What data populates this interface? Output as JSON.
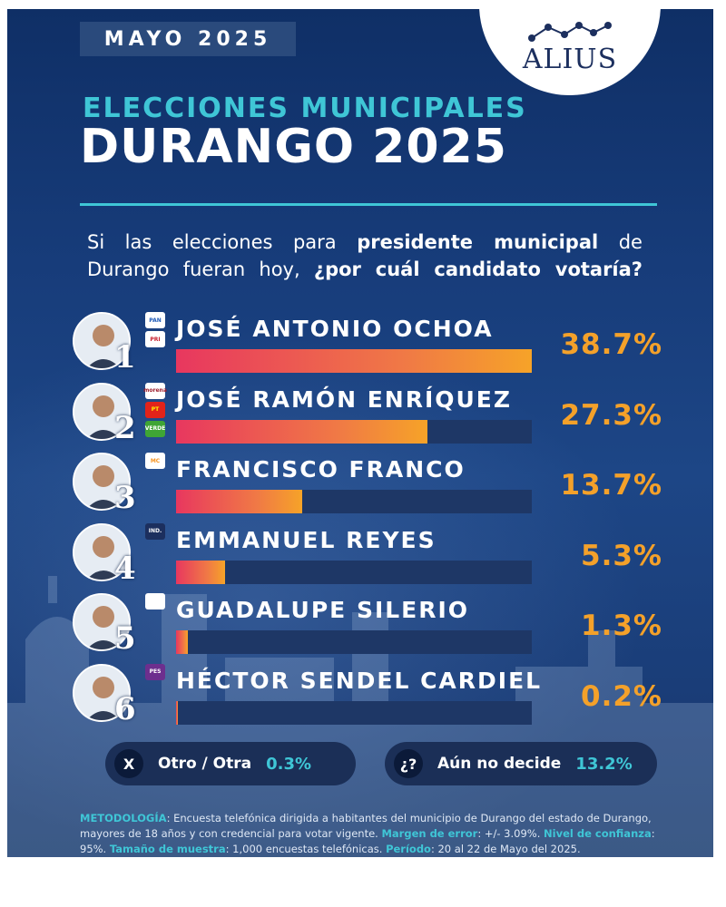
{
  "header": {
    "date_tag": "MAYO 2025",
    "logo_text": "ALIUS",
    "subtitle": "ELECCIONES MUNICIPALES",
    "title": "DURANGO 2025"
  },
  "question": {
    "part1": "Si las elecciones para ",
    "part2_bold": "presidente municipal",
    "part3": " de Durango fueran hoy, ",
    "part4_bold": "¿por cuál candidato votaría?"
  },
  "chart_data": {
    "type": "bar",
    "orientation": "horizontal",
    "categories": [
      "JOSÉ ANTONIO OCHOA",
      "JOSÉ RAMÓN ENRÍQUEZ",
      "FRANCISCO FRANCO",
      "EMMANUEL REYES",
      "GUADALUPE SILERIO",
      "HÉCTOR SENDEL CARDIEL"
    ],
    "values": [
      38.7,
      27.3,
      13.7,
      5.3,
      1.3,
      0.2
    ],
    "value_labels": [
      "38.7%",
      "27.3%",
      "13.7%",
      "5.3%",
      "1.3%",
      "0.2%"
    ],
    "ranks": [
      "1",
      "2",
      "3",
      "4",
      "5",
      "6"
    ],
    "xlim": [
      0,
      38.7
    ],
    "unit": "%",
    "colors": {
      "bar_start": "#e8375f",
      "bar_end": "#f6a328",
      "track": "#1e3766",
      "value_text": "#f4a12a"
    }
  },
  "parties": [
    [
      {
        "icon": "pan-logo-icon",
        "text": "PAN"
      },
      {
        "icon": "pri-logo-icon",
        "text": "PRI"
      }
    ],
    [
      {
        "icon": "morena-logo-icon",
        "text": "morena"
      },
      {
        "icon": "pt-logo-icon",
        "text": "PT"
      },
      {
        "icon": "verde-logo-icon",
        "text": "VERDE"
      }
    ],
    [
      {
        "icon": "mc-logo-icon",
        "text": "MC"
      }
    ],
    [
      {
        "icon": "independent-logo-icon",
        "text": "IND."
      }
    ],
    [
      {
        "icon": "innovacion-logo-icon",
        "text": ""
      }
    ],
    [
      {
        "icon": "pes-logo-icon",
        "text": "PES"
      }
    ]
  ],
  "others": {
    "other_icon": "X",
    "other_label": "Otro / Otra",
    "other_value": "0.3%",
    "undecided_icon": "¿?",
    "undecided_label": "Aún no decide",
    "undecided_value": "13.2%"
  },
  "methodology": {
    "k1": "METODOLOGÍA",
    "t1": ": Encuesta telefónica dirigida a habitantes del municipio de Durango del estado de Durango, mayores de 18 años y con credencial para votar vigente. ",
    "k2": "Margen de error",
    "t2": ": +/- 3.09%. ",
    "k3": "Nivel de confianza",
    "t3": ": 95%. ",
    "k4": "Tamaño de muestra",
    "t4": ": 1,000 encuestas telefónicas. ",
    "k5": "Período",
    "t5": ": 20 al 22 de Mayo del 2025."
  },
  "colors": {
    "background": "#173c7a",
    "accent_teal": "#3fc6d6",
    "accent_orange": "#f4a12a"
  }
}
